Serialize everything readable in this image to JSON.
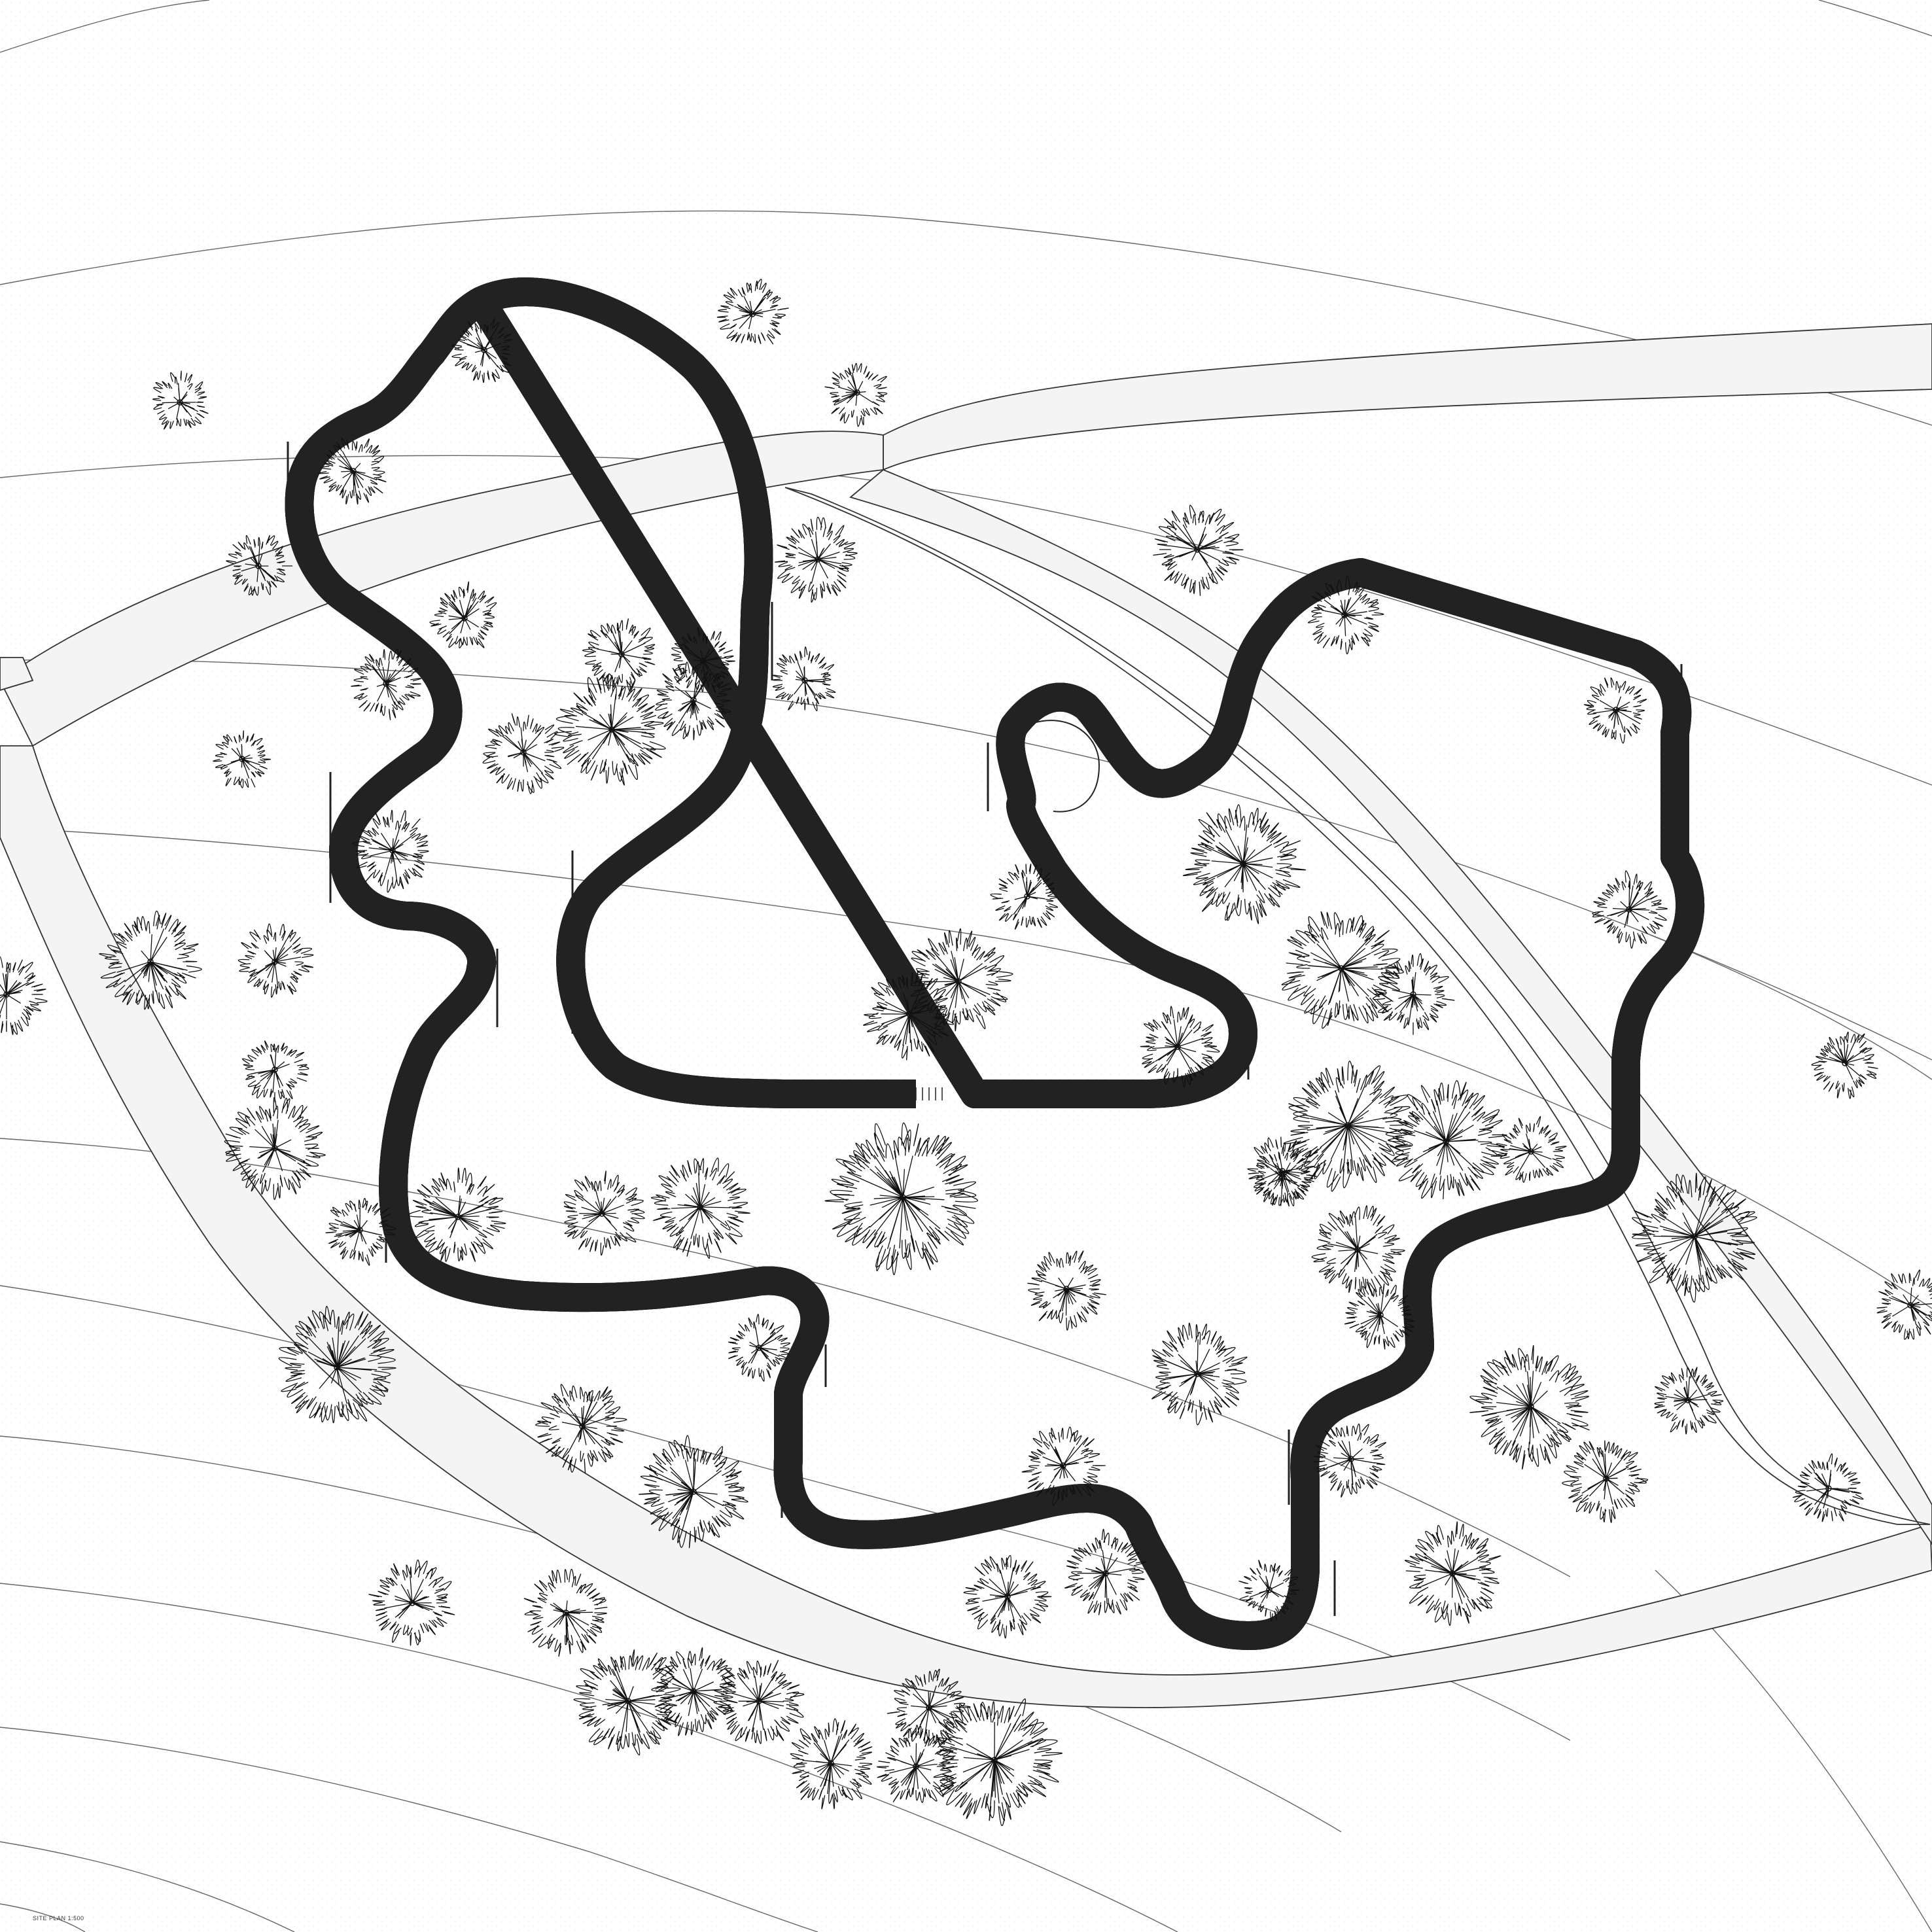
{
  "sheet": {
    "caption": "SITE PLAN 1:500"
  },
  "colors": {
    "background": "#ffffff",
    "ground": "#f7f7f7",
    "road_fill": "#f3f3f3",
    "line": "#222222",
    "contour": "#555555",
    "walkway_fill": "#c8c8c8",
    "tree_stroke": "#111111"
  },
  "layers": [
    "contour-lines",
    "roads",
    "walkway-loop",
    "trees",
    "walkway-entries"
  ]
}
